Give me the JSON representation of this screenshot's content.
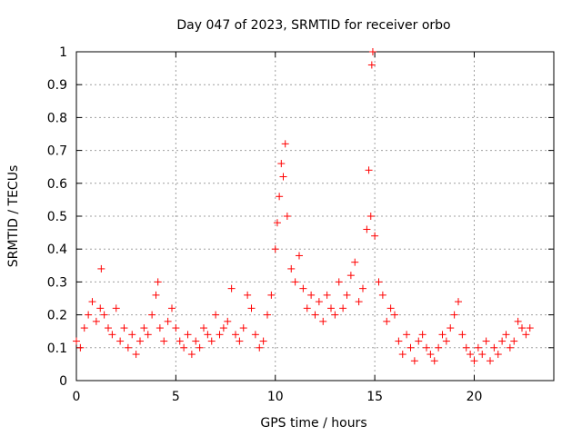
{
  "chart_data": {
    "type": "scatter",
    "title": "Day 047 of 2023, SRMTID for receiver orbo",
    "xlabel": "GPS time / hours",
    "ylabel": "SRMTID / TECUs",
    "xlim": [
      0,
      24
    ],
    "ylim": [
      0,
      1
    ],
    "x_ticks": [
      0,
      5,
      10,
      15,
      20
    ],
    "x_tick_labels": [
      "0",
      "5",
      "10",
      "15",
      "20"
    ],
    "y_ticks": [
      0,
      0.1,
      0.2,
      0.3,
      0.4,
      0.5,
      0.6,
      0.7,
      0.8,
      0.9,
      1
    ],
    "y_tick_labels": [
      "0",
      "0.1",
      "0.2",
      "0.3",
      "0.4",
      "0.5",
      "0.6",
      "0.7",
      "0.8",
      "0.9",
      "1"
    ],
    "grid": true,
    "marker": "plus",
    "marker_color": "#ff0000",
    "series": [
      {
        "name": "SRMTID",
        "x": [
          0.0,
          0.2,
          0.4,
          0.6,
          0.8,
          1.0,
          1.2,
          1.25,
          1.4,
          1.6,
          1.8,
          2.0,
          2.2,
          2.4,
          2.6,
          2.8,
          3.0,
          3.2,
          3.4,
          3.6,
          3.8,
          4.0,
          4.1,
          4.2,
          4.4,
          4.6,
          4.8,
          5.0,
          5.2,
          5.4,
          5.6,
          5.8,
          6.0,
          6.2,
          6.4,
          6.6,
          6.8,
          7.0,
          7.2,
          7.4,
          7.6,
          7.8,
          8.0,
          8.2,
          8.4,
          8.6,
          8.8,
          9.0,
          9.2,
          9.4,
          9.6,
          9.8,
          10.0,
          10.1,
          10.2,
          10.3,
          10.4,
          10.5,
          10.6,
          10.8,
          11.0,
          11.2,
          11.4,
          11.6,
          11.8,
          12.0,
          12.2,
          12.4,
          12.6,
          12.8,
          13.0,
          13.2,
          13.4,
          13.6,
          13.8,
          14.0,
          14.2,
          14.4,
          14.6,
          14.7,
          14.8,
          14.85,
          14.9,
          15.0,
          15.2,
          15.4,
          15.6,
          15.8,
          16.0,
          16.2,
          16.4,
          16.6,
          16.8,
          17.0,
          17.2,
          17.4,
          17.6,
          17.8,
          18.0,
          18.2,
          18.4,
          18.6,
          18.8,
          19.0,
          19.2,
          19.4,
          19.6,
          19.8,
          20.0,
          20.2,
          20.4,
          20.6,
          20.8,
          21.0,
          21.2,
          21.4,
          21.6,
          21.8,
          22.0,
          22.2,
          22.4,
          22.6,
          22.8
        ],
        "y": [
          0.12,
          0.1,
          0.16,
          0.2,
          0.24,
          0.18,
          0.22,
          0.34,
          0.2,
          0.16,
          0.14,
          0.22,
          0.12,
          0.16,
          0.1,
          0.14,
          0.08,
          0.12,
          0.16,
          0.14,
          0.2,
          0.26,
          0.3,
          0.16,
          0.12,
          0.18,
          0.22,
          0.16,
          0.12,
          0.1,
          0.14,
          0.08,
          0.12,
          0.1,
          0.16,
          0.14,
          0.12,
          0.2,
          0.14,
          0.16,
          0.18,
          0.28,
          0.14,
          0.12,
          0.16,
          0.26,
          0.22,
          0.14,
          0.1,
          0.12,
          0.2,
          0.26,
          0.4,
          0.48,
          0.56,
          0.66,
          0.62,
          0.72,
          0.5,
          0.34,
          0.3,
          0.38,
          0.28,
          0.22,
          0.26,
          0.2,
          0.24,
          0.18,
          0.26,
          0.22,
          0.2,
          0.3,
          0.22,
          0.26,
          0.32,
          0.36,
          0.24,
          0.28,
          0.46,
          0.64,
          0.5,
          0.96,
          1.0,
          0.44,
          0.3,
          0.26,
          0.18,
          0.22,
          0.2,
          0.12,
          0.08,
          0.14,
          0.1,
          0.06,
          0.12,
          0.14,
          0.1,
          0.08,
          0.06,
          0.1,
          0.14,
          0.12,
          0.16,
          0.2,
          0.24,
          0.14,
          0.1,
          0.08,
          0.06,
          0.1,
          0.08,
          0.12,
          0.06,
          0.1,
          0.08,
          0.12,
          0.14,
          0.1,
          0.12,
          0.18,
          0.16,
          0.14,
          0.16
        ]
      }
    ]
  }
}
